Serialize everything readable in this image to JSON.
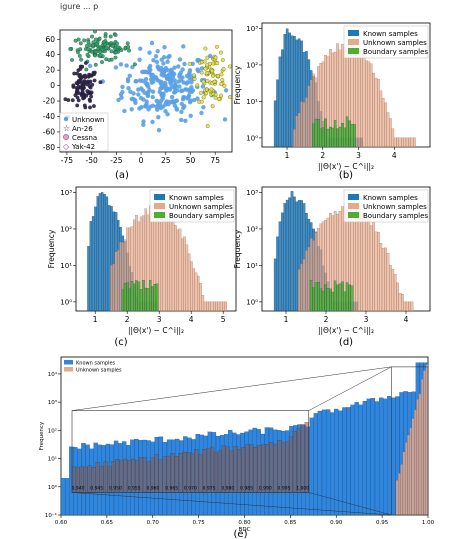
{
  "caption_top": "igure ... p",
  "panel_labels": [
    "(a)",
    "(b)",
    "(c)",
    "(d)",
    "(e)"
  ],
  "colors": {
    "known": "#1f77b4",
    "known_bright": "#2f86de",
    "unknown": "#e7a98a",
    "boundary": "#4caf34",
    "scatter_unknown": "#5aa0e6",
    "an26": "#2a1f4a",
    "cessna": "#2ca36a",
    "yak42": "#e8e23a"
  },
  "chart_data": [
    {
      "id": "a",
      "type": "scatter",
      "xticks": [
        "-75",
        "-50",
        "-25",
        "0",
        "25",
        "50",
        "75"
      ],
      "yticks": [
        "60",
        "40",
        "20",
        "0",
        "-20",
        "-40",
        "-60",
        "-80"
      ],
      "xlim": [
        -82,
        92
      ],
      "ylim": [
        -86,
        72
      ],
      "legend": [
        "Unknown",
        "An-26",
        "Cessna",
        "Yak-42"
      ],
      "legend_loc": "lower-left",
      "clusters": [
        {
          "name": "Unknown",
          "cx": 25,
          "cy": 0,
          "sx": 22,
          "sy": 22,
          "n": 260
        },
        {
          "name": "Cessna",
          "cx": -40,
          "cy": 48,
          "sx": 15,
          "sy": 8,
          "n": 110
        },
        {
          "name": "An-26",
          "cx": -58,
          "cy": -5,
          "sx": 7,
          "sy": 14,
          "n": 90
        },
        {
          "name": "Yak-42",
          "cx": 72,
          "cy": 12,
          "sx": 8,
          "sy": 16,
          "n": 80
        }
      ]
    },
    {
      "id": "b",
      "type": "bar",
      "xlabel": "||Θ(x') − C^i||₂",
      "ylabel": "Frequency",
      "xticks": [
        "1",
        "2",
        "3",
        "4"
      ],
      "yticks": [
        "10⁰",
        "10¹",
        "10²",
        "10³"
      ],
      "xlim": [
        0.3,
        5.0
      ],
      "ylog": [
        0,
        3
      ],
      "legend": [
        "Known samples",
        "Unknown samples",
        "Boundary samples"
      ],
      "legend_loc": "top-right",
      "series": [
        {
          "name": "Known samples",
          "peak_x": 1.05,
          "peak_log": 2.92,
          "sl": 0.25,
          "sr": 0.55,
          "x0": 0.65,
          "x1": 3.1
        },
        {
          "name": "Unknown samples",
          "peak_x": 2.7,
          "peak_log": 2.55,
          "sl": 0.9,
          "sr": 0.75,
          "x0": 1.2,
          "x1": 4.6
        },
        {
          "name": "Boundary samples",
          "peak_x": 2.25,
          "peak_log": 0.6,
          "sl": 0.35,
          "sr": 0.35,
          "x0": 1.7,
          "x1": 2.9
        }
      ]
    },
    {
      "id": "c",
      "type": "bar",
      "xlabel": "||Θ(x') − C^i||₂",
      "ylabel": "Frequency",
      "xticks": [
        "1",
        "2",
        "3",
        "4",
        "5"
      ],
      "yticks": [
        "10⁰",
        "10¹",
        "10²",
        "10³"
      ],
      "xlim": [
        0.4,
        5.4
      ],
      "ylog": [
        0,
        3
      ],
      "legend": [
        "Known samples",
        "Unknown samples",
        "Boundary samples"
      ],
      "legend_loc": "top-right",
      "series": [
        {
          "name": "Known samples",
          "peak_x": 1.15,
          "peak_log": 2.92,
          "sl": 0.28,
          "sr": 0.6,
          "x0": 0.75,
          "x1": 3.0
        },
        {
          "name": "Unknown samples",
          "peak_x": 2.9,
          "peak_log": 2.55,
          "sl": 1.0,
          "sr": 0.85,
          "x0": 1.5,
          "x1": 5.1
        },
        {
          "name": "Boundary samples",
          "peak_x": 2.3,
          "peak_log": 0.6,
          "sl": 0.4,
          "sr": 0.4,
          "x0": 1.8,
          "x1": 3.0
        }
      ]
    },
    {
      "id": "d",
      "type": "bar",
      "xlabel": "||Θ(x') − C^i||₂",
      "ylabel": "Frequency",
      "xticks": [
        "1",
        "2",
        "3",
        "4"
      ],
      "yticks": [
        "10⁰",
        "10¹",
        "10²",
        "10³"
      ],
      "xlim": [
        0.4,
        4.6
      ],
      "ylog": [
        0,
        3
      ],
      "legend": [
        "Known samples",
        "Unknown samples",
        "Boundary samples"
      ],
      "legend_loc": "top-right",
      "series": [
        {
          "name": "Known samples",
          "peak_x": 1.1,
          "peak_log": 2.92,
          "sl": 0.25,
          "sr": 0.55,
          "x0": 0.7,
          "x1": 2.8
        },
        {
          "name": "Unknown samples",
          "peak_x": 2.6,
          "peak_log": 2.55,
          "sl": 0.9,
          "sr": 0.75,
          "x0": 1.3,
          "x1": 4.2
        },
        {
          "name": "Boundary samples",
          "peak_x": 2.1,
          "peak_log": 0.6,
          "sl": 0.35,
          "sr": 0.35,
          "x0": 1.6,
          "x1": 2.7
        }
      ]
    },
    {
      "id": "e",
      "type": "bar",
      "xlabel": "BDC",
      "ylabel": "Frequency",
      "xticks": [
        "0.60",
        "0.65",
        "0.70",
        "0.75",
        "0.80",
        "0.85",
        "0.90",
        "0.95",
        "1.00"
      ],
      "yticks": [
        "10⁻¹",
        "10⁰",
        "10¹",
        "10²",
        "10³",
        "10⁴"
      ],
      "xlim": [
        0.6,
        1.0
      ],
      "ylog": [
        -1,
        4.6
      ],
      "legend": [
        "Known samples",
        "Unknown samples"
      ],
      "legend_loc": "top-left",
      "inset_ticks": [
        "0.940",
        "0.945",
        "0.950",
        "0.955",
        "0.960",
        "0.965",
        "0.970",
        "0.975",
        "0.980",
        "0.985",
        "0.990",
        "0.995",
        "1.000"
      ],
      "zoom_range": [
        0.96,
        1.0
      ]
    }
  ]
}
